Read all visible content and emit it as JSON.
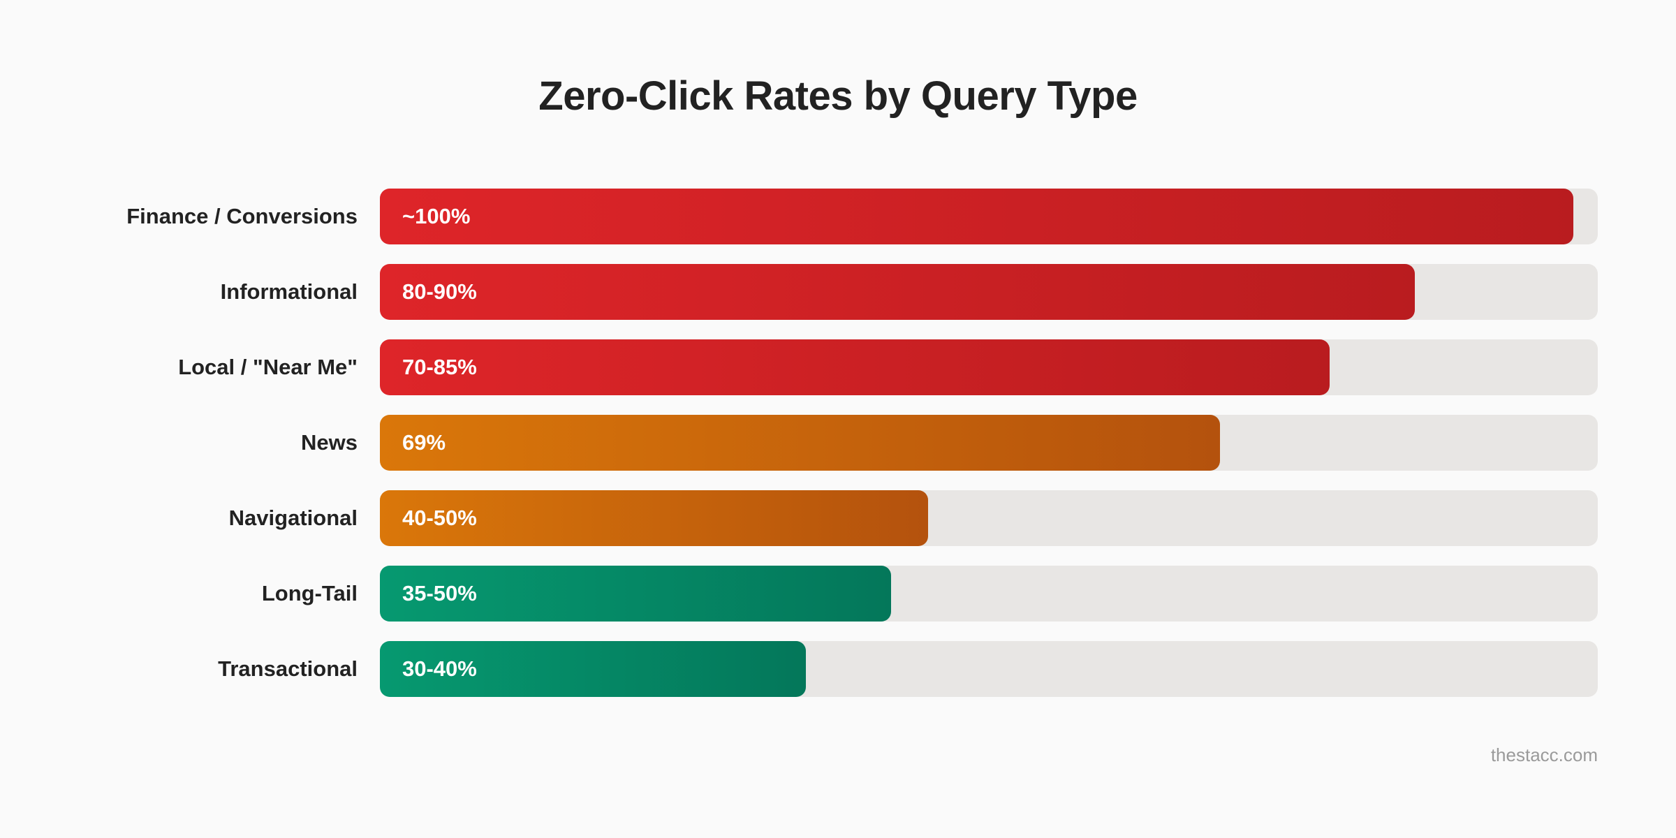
{
  "chart_data": {
    "type": "bar",
    "orientation": "horizontal",
    "title": "Zero-Click Rates by Query Type",
    "xlabel": "",
    "ylabel": "",
    "xlim": [
      0,
      100
    ],
    "grid": false,
    "categories": [
      "Finance / Conversions",
      "Informational",
      "Local / \"Near Me\"",
      "News",
      "Navigational",
      "Long-Tail",
      "Transactional"
    ],
    "values": [
      98,
      85,
      78,
      69,
      45,
      42,
      35
    ],
    "value_labels": [
      "~100%",
      "80-90%",
      "70-85%",
      "69%",
      "40-50%",
      "35-50%",
      "30-40%"
    ],
    "colors": [
      [
        "#de2529",
        "#b91c1f"
      ],
      [
        "#de2529",
        "#b91c1f"
      ],
      [
        "#de2529",
        "#b91c1f"
      ],
      [
        "#da770a",
        "#b4520d"
      ],
      [
        "#da770a",
        "#b4520d"
      ],
      [
        "#069970",
        "#04775a"
      ],
      [
        "#069970",
        "#04775a"
      ]
    ],
    "track_color": "#e8e6e4"
  },
  "footer": {
    "credit": "thestacc.com"
  }
}
